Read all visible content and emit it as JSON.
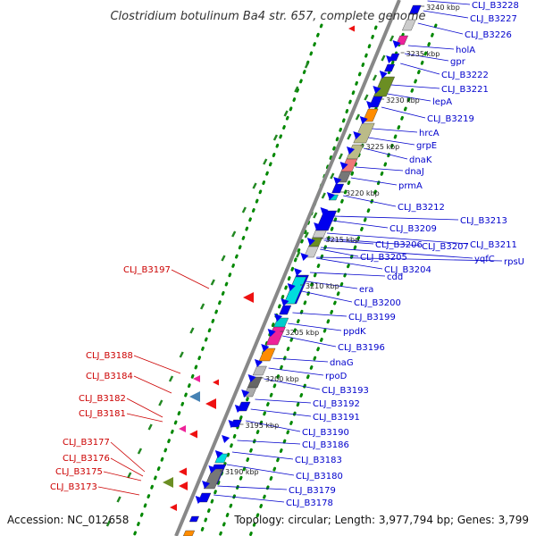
{
  "title": "Clostridium botulinum Ba4 str. 657, complete genome",
  "accession": "Accession: NC_012658",
  "summary": "Topology: circular; Length: 3,977,794 bp; Genes: 3,799",
  "colors": {
    "forward_label": "#0000cc",
    "reverse_label": "#cc0000",
    "backbone": "#888888",
    "gc_dots": "#008800",
    "forward_gene": "#0000ee",
    "reverse_gene": "#ee1111"
  },
  "ticks": [
    {
      "label": "3240 kbp",
      "kbp": 3240
    },
    {
      "label": "3235 kbp",
      "kbp": 3235
    },
    {
      "label": "3230 kbp",
      "kbp": 3230
    },
    {
      "label": "3225 kbp",
      "kbp": 3225
    },
    {
      "label": "3220 kbp",
      "kbp": 3220
    },
    {
      "label": "3215 kbp",
      "kbp": 3215
    },
    {
      "label": "3210 kbp",
      "kbp": 3210
    },
    {
      "label": "3205 kbp",
      "kbp": 3205
    },
    {
      "label": "3200 kbp",
      "kbp": 3200
    },
    {
      "label": "3195 kbp",
      "kbp": 3195
    },
    {
      "label": "3190 kbp",
      "kbp": 3190
    }
  ],
  "forward_genes": [
    "CLJ_B3228",
    "CLJ_B3227",
    "CLJ_B3226",
    "holA",
    "gpr",
    "CLJ_B3222",
    "CLJ_B3221",
    "lepA",
    "CLJ_B3219",
    "hrcA",
    "grpE",
    "dnaK",
    "dnaJ",
    "prmA",
    "CLJ_B3212",
    "CLJ_B3213",
    "CLJ_B3209",
    "CLJ_B3211",
    "CLJ_B3206",
    "CLJ_B3207",
    "yqfC",
    "rpsU",
    "CLJ_B3205",
    "CLJ_B3204",
    "cdd",
    "era",
    "CLJ_B3200",
    "CLJ_B3199",
    "ppdK",
    "CLJ_B3196",
    "dnaG",
    "rpoD",
    "CLJ_B3193",
    "CLJ_B3192",
    "CLJ_B3191",
    "CLJ_B3190",
    "CLJ_B3186",
    "CLJ_B3183",
    "CLJ_B3180",
    "CLJ_B3179",
    "CLJ_B3178"
  ],
  "reverse_genes": [
    "CLJ_B3197",
    "CLJ_B3188",
    "CLJ_B3184",
    "CLJ_B3182",
    "CLJ_B3181",
    "CLJ_B3177",
    "CLJ_B3176",
    "CLJ_B3175",
    "CLJ_B3173"
  ]
}
